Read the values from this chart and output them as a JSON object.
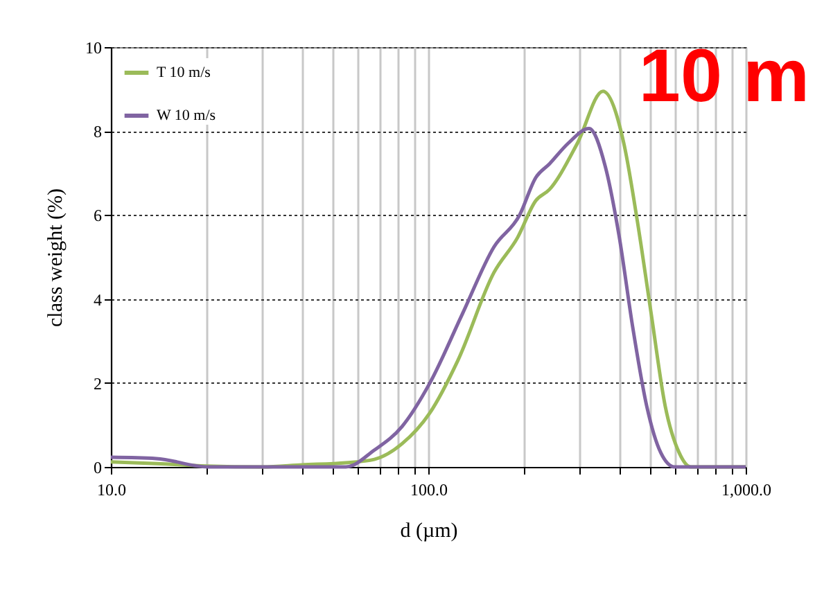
{
  "chart_data": {
    "type": "line",
    "xlabel": "d (µm)",
    "ylabel": "class weight  (%)",
    "annotations": [
      "10 m"
    ],
    "log": "x",
    "grid": true,
    "legend": "top left",
    "xlim": [
      10,
      1000
    ],
    "ylim": [
      0,
      10
    ],
    "xticks": [
      {
        "value": 10,
        "label": "10.0"
      },
      {
        "value": 20,
        "label": null
      },
      {
        "value": 30,
        "label": null
      },
      {
        "value": 40,
        "label": null
      },
      {
        "value": 50,
        "label": null
      },
      {
        "value": 60,
        "label": null
      },
      {
        "value": 70,
        "label": null
      },
      {
        "value": 80,
        "label": null
      },
      {
        "value": 90,
        "label": null
      },
      {
        "value": 100,
        "label": "100.0"
      },
      {
        "value": 200,
        "label": null
      },
      {
        "value": 300,
        "label": null
      },
      {
        "value": 400,
        "label": null
      },
      {
        "value": 500,
        "label": null
      },
      {
        "value": 600,
        "label": null
      },
      {
        "value": 700,
        "label": null
      },
      {
        "value": 800,
        "label": null
      },
      {
        "value": 900,
        "label": null
      },
      {
        "value": 1000,
        "label": "1,000.0"
      }
    ],
    "yticks": [
      0,
      2,
      4,
      6,
      8,
      10
    ],
    "series": [
      {
        "name": "T 10 m/s",
        "color": "#9bbb59",
        "x": [
          10,
          14,
          20,
          30,
          40,
          55,
          67.6,
          82.6,
          101,
          124,
          161,
          191,
          218,
          241,
          295,
          355,
          413,
          456,
          504,
          558,
          617,
          671,
          1000
        ],
        "values": [
          0.12,
          0.08,
          0.02,
          0,
          0.05,
          0.1,
          0.18,
          0.55,
          1.28,
          2.54,
          4.63,
          5.46,
          6.34,
          6.61,
          7.71,
          8.95,
          7.71,
          5.84,
          3.64,
          1.44,
          0.34,
          0,
          0
        ]
      },
      {
        "name": "W 10 m/s",
        "color": "#8064a2",
        "x": [
          10,
          13.9,
          20.2,
          30,
          55,
          67.6,
          82.6,
          101,
          128,
          161,
          194,
          218,
          241,
          276,
          321,
          361,
          399,
          441,
          488,
          540,
          597,
          1000
        ],
        "values": [
          0.23,
          0.2,
          0,
          0,
          0,
          0.4,
          0.96,
          1.99,
          3.64,
          5.24,
          6.0,
          6.89,
          7.22,
          7.71,
          8.06,
          7.16,
          5.51,
          3.31,
          1.44,
          0.34,
          0,
          0
        ]
      }
    ]
  }
}
